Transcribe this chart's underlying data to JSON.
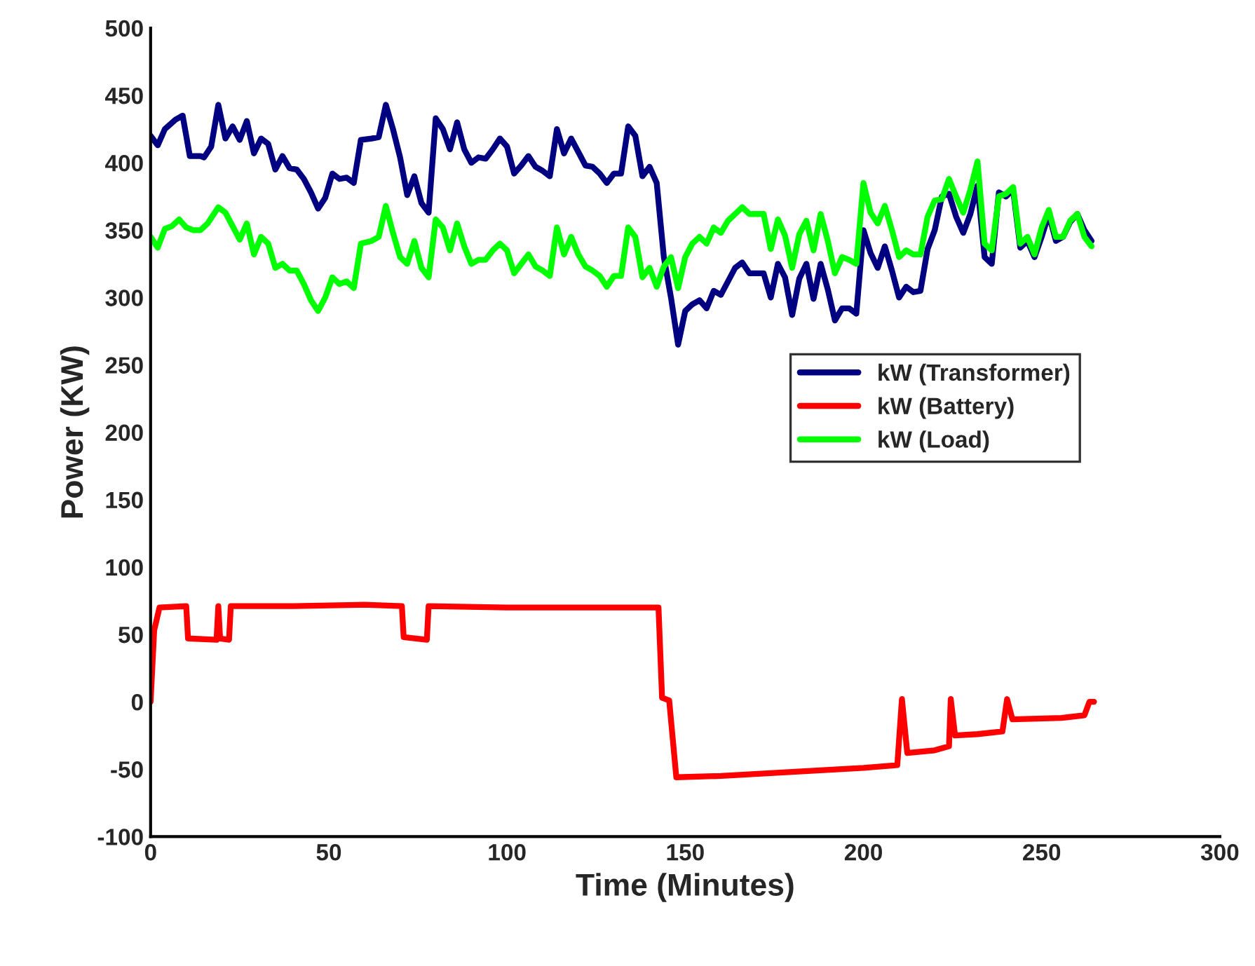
{
  "chart_data": {
    "type": "line",
    "xlabel": "Time (Minutes)",
    "ylabel": "Power (KW)",
    "xlim": [
      0,
      300
    ],
    "xticks": [
      0,
      50,
      100,
      150,
      200,
      250,
      300
    ],
    "ylim": [
      -100,
      500
    ],
    "yticks": [
      -100,
      -50,
      0,
      50,
      100,
      150,
      200,
      250,
      300,
      350,
      400,
      450,
      500
    ],
    "grid": false,
    "legend": "center right",
    "marker": "none",
    "line_style": "solid",
    "series": [
      {
        "name": "kW (Transformer)",
        "color": "#000080",
        "x": [
          0,
          2,
          4,
          7,
          9,
          11,
          14,
          15,
          17,
          19,
          21,
          23,
          25,
          27,
          29,
          31,
          33,
          35,
          37,
          39,
          41,
          43,
          45,
          47,
          49,
          51,
          53,
          55,
          57,
          59,
          62,
          64,
          66,
          68,
          70,
          72,
          74,
          76,
          78,
          80,
          82,
          84,
          86,
          88,
          90,
          92,
          94,
          96,
          98,
          100,
          102,
          104,
          106,
          108,
          110,
          112,
          114,
          116,
          118,
          120,
          122,
          124,
          126,
          128,
          130,
          132,
          134,
          136,
          138,
          140,
          142,
          144,
          146,
          148,
          150,
          152,
          154,
          156,
          158,
          160,
          162,
          164,
          166,
          168,
          170,
          172,
          174,
          176,
          178,
          180,
          182,
          184,
          186,
          188,
          190,
          192,
          194,
          196,
          198,
          200,
          202,
          204,
          206,
          208,
          210,
          212,
          214,
          216,
          218,
          220,
          222,
          224,
          226,
          228,
          230,
          232,
          234,
          236,
          238,
          240,
          242,
          244,
          246,
          248,
          250,
          252,
          254,
          256,
          258,
          260,
          262,
          264
        ],
        "values": [
          420,
          413,
          425,
          432,
          435,
          405,
          405,
          404,
          412,
          443,
          418,
          427,
          417,
          431,
          407,
          418,
          414,
          395,
          405,
          396,
          395,
          388,
          378,
          366,
          374,
          392,
          388,
          389,
          385,
          417,
          418,
          419,
          443,
          425,
          404,
          376,
          390,
          370,
          363,
          433,
          425,
          410,
          430,
          410,
          400,
          404,
          403,
          410,
          418,
          412,
          392,
          398,
          405,
          397,
          394,
          390,
          425,
          407,
          418,
          408,
          398,
          397,
          392,
          385,
          392,
          392,
          427,
          420,
          390,
          397,
          385,
          330,
          300,
          265,
          290,
          295,
          298,
          292,
          305,
          302,
          312,
          322,
          326,
          318,
          318,
          318,
          300,
          325,
          315,
          287,
          314,
          325,
          299,
          325,
          306,
          283,
          292,
          292,
          288,
          350,
          333,
          322,
          338,
          320,
          300,
          308,
          304,
          305,
          336,
          350,
          375,
          377,
          360,
          348,
          362,
          383,
          330,
          325,
          378,
          375,
          380,
          337,
          342,
          330,
          345,
          362,
          342,
          345,
          356,
          362,
          350,
          342
        ]
      },
      {
        "name": "kW (Battery)",
        "color": "#ff0000",
        "x": [
          0,
          1,
          2.5,
          10,
          10.5,
          18.5,
          19,
          19.5,
          22,
          22.5,
          40,
          60,
          70.5,
          71,
          77.5,
          78,
          100,
          120,
          142.5,
          143.5,
          145.5,
          147.5,
          160,
          180,
          200,
          209.5,
          210.8,
          212.3,
          220,
          224,
          224.5,
          225.7,
          232,
          239,
          240.3,
          241.8,
          255.6,
          262,
          263.4,
          264.7
        ],
        "values": [
          0,
          53,
          70,
          71,
          47,
          46,
          71,
          47,
          46,
          71,
          71,
          72,
          71,
          48,
          46,
          71,
          70,
          70,
          70,
          3,
          1,
          -56,
          -55,
          -52,
          -49,
          -47,
          2,
          -38,
          -36,
          -33,
          2,
          -25,
          -24,
          -22,
          2,
          -13,
          -12,
          -10,
          0,
          0
        ]
      },
      {
        "name": "kW (Load)",
        "color": "#00ff00",
        "x": [
          0,
          2,
          4,
          6,
          8,
          10,
          12,
          14,
          16,
          19,
          21,
          23,
          25,
          27,
          29,
          31,
          33,
          35,
          37,
          39,
          41,
          43,
          45,
          47,
          49,
          51,
          53,
          55,
          57,
          59,
          62,
          64,
          66,
          68,
          70,
          72,
          74,
          76,
          78,
          80,
          82,
          84,
          86,
          88,
          90,
          92,
          94,
          96,
          98,
          100,
          102,
          104,
          106,
          108,
          110,
          112,
          114,
          116,
          118,
          120,
          122,
          124,
          126,
          128,
          130,
          132,
          134,
          136,
          138,
          140,
          142,
          144,
          146,
          148,
          150,
          152,
          154,
          156,
          158,
          160,
          162,
          164,
          166,
          168,
          170,
          172,
          174,
          176,
          178,
          180,
          182,
          184,
          186,
          188,
          190,
          192,
          194,
          196,
          198,
          200,
          202,
          204,
          206,
          208,
          210,
          212,
          214,
          216,
          218,
          220,
          222,
          224,
          226,
          228,
          230,
          232,
          234,
          236,
          238,
          240,
          242,
          244,
          246,
          248,
          250,
          252,
          254,
          256,
          258,
          260,
          262,
          264
        ],
        "values": [
          345,
          337,
          351,
          353,
          358,
          352,
          350,
          350,
          355,
          367,
          363,
          353,
          343,
          355,
          332,
          345,
          340,
          322,
          325,
          320,
          320,
          310,
          298,
          290,
          300,
          315,
          310,
          312,
          307,
          340,
          342,
          345,
          368,
          348,
          330,
          325,
          342,
          322,
          315,
          358,
          352,
          335,
          355,
          338,
          325,
          328,
          328,
          335,
          340,
          335,
          318,
          325,
          332,
          323,
          320,
          316,
          352,
          332,
          345,
          332,
          323,
          320,
          316,
          308,
          316,
          316,
          352,
          345,
          315,
          322,
          308,
          323,
          330,
          307,
          330,
          340,
          345,
          340,
          352,
          348,
          357,
          362,
          367,
          362,
          362,
          362,
          336,
          358,
          346,
          322,
          347,
          357,
          335,
          362,
          342,
          318,
          330,
          328,
          325,
          385,
          363,
          355,
          368,
          350,
          330,
          335,
          332,
          332,
          360,
          372,
          373,
          388,
          375,
          363,
          380,
          401,
          340,
          335,
          375,
          377,
          382,
          340,
          345,
          332,
          352,
          365,
          345,
          345,
          357,
          362,
          345,
          338
        ]
      }
    ]
  }
}
